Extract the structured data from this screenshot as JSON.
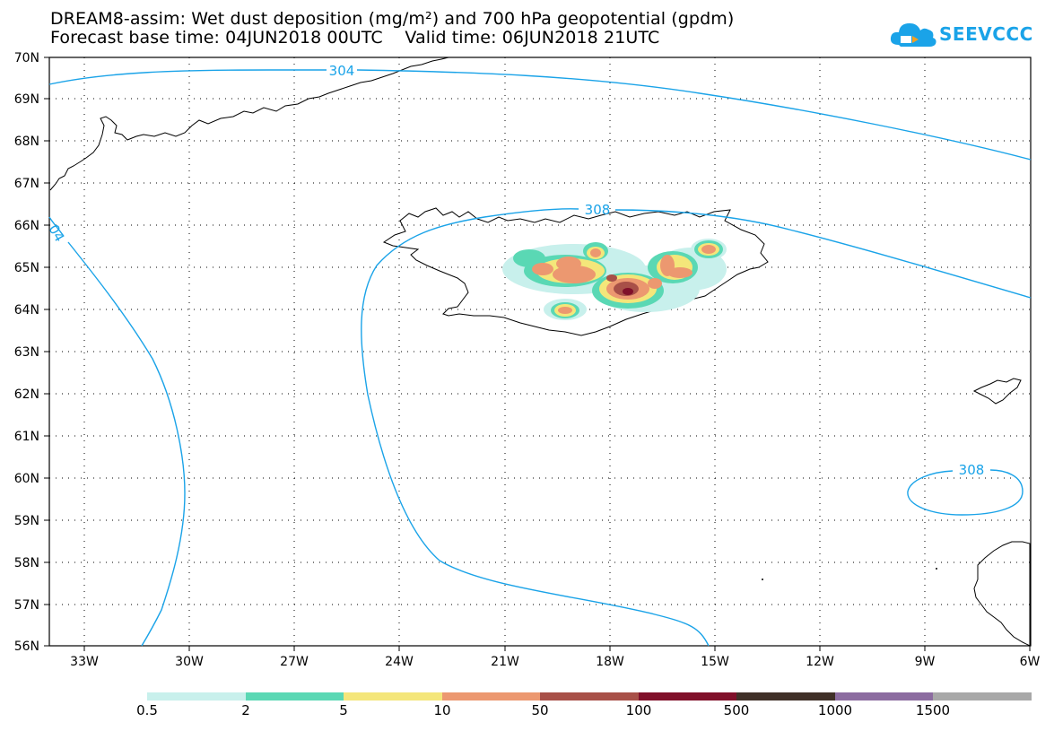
{
  "header": {
    "title_line1": "DREAM8-assim: Wet dust deposition (mg/m²) and 700 hPa geopotential (gpdm)",
    "title_line2": "Forecast base time: 04JUN2018 00UTC    Valid time: 06JUN2018 21UTC",
    "logo_text": "SEEVCCC",
    "logo_icon": "cloud-icon"
  },
  "map": {
    "lat_labels": [
      "70N",
      "69N",
      "68N",
      "67N",
      "66N",
      "65N",
      "64N",
      "63N",
      "62N",
      "61N",
      "60N",
      "59N",
      "58N",
      "57N",
      "56N"
    ],
    "lon_labels": [
      "33W",
      "30W",
      "27W",
      "24W",
      "21W",
      "18W",
      "15W",
      "12W",
      "9W",
      "6W"
    ],
    "contour_labels": [
      "304",
      "308",
      "04",
      "308"
    ],
    "contour_color": "#1aa3e8"
  },
  "colorbar": {
    "colors": [
      "#c8f0ec",
      "#5ad8b4",
      "#f4e67a",
      "#ec9870",
      "#a85048",
      "#80102a",
      "#403028",
      "#8c6ca0",
      "#a8a8a8"
    ],
    "ticks": [
      "0.5",
      "2",
      "5",
      "10",
      "50",
      "100",
      "500",
      "1000",
      "1500"
    ]
  }
}
